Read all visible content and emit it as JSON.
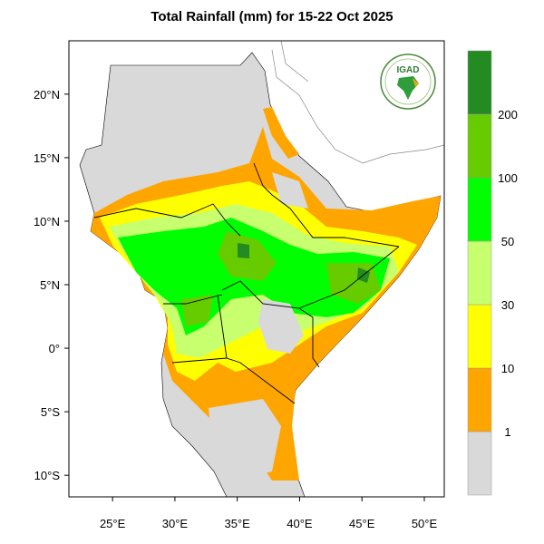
{
  "title": "Total Rainfall (mm) for 15-22 Oct 2025",
  "logo_text": "IGAD",
  "map": {
    "lon_ticks": [
      {
        "v": 25,
        "label": "25°E"
      },
      {
        "v": 30,
        "label": "30°E"
      },
      {
        "v": 35,
        "label": "35°E"
      },
      {
        "v": 40,
        "label": "40°E"
      },
      {
        "v": 45,
        "label": "45°E"
      },
      {
        "v": 50,
        "label": "50°E"
      }
    ],
    "lat_ticks": [
      {
        "v": 20,
        "label": "20°N"
      },
      {
        "v": 15,
        "label": "15°N"
      },
      {
        "v": 10,
        "label": "10°N"
      },
      {
        "v": 5,
        "label": "5°N"
      },
      {
        "v": 0,
        "label": "0°"
      },
      {
        "v": -5,
        "label": "5°S"
      },
      {
        "v": -10,
        "label": "10°S"
      }
    ],
    "lon_range": [
      21.5,
      51.6
    ],
    "lat_range": [
      -11.7,
      24.2
    ]
  },
  "colorbar": {
    "labels": [
      "1",
      "10",
      "30",
      "50",
      "100",
      "200"
    ],
    "colors": [
      "#d9d9d9",
      "#ffa500",
      "#ffff00",
      "#c8ff6e",
      "#00ff00",
      "#66cc00",
      "#228b22"
    ]
  }
}
